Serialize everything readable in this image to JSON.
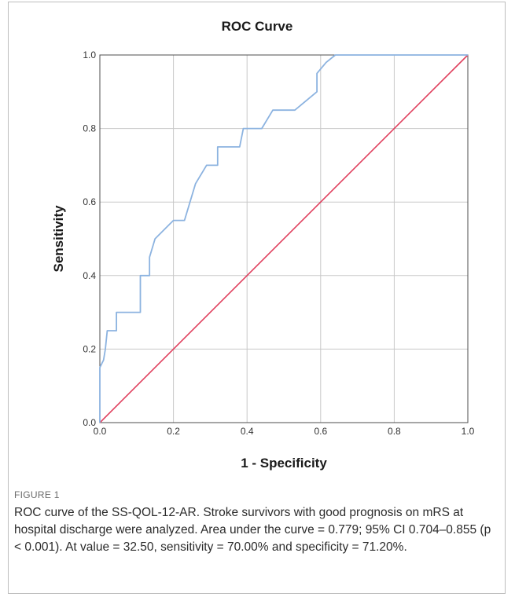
{
  "chart_data": {
    "type": "line",
    "title": "ROC Curve",
    "xlabel": "1 - Specificity",
    "ylabel": "Sensitivity",
    "xlim": [
      0.0,
      1.0
    ],
    "ylim": [
      0.0,
      1.0
    ],
    "xticks": [
      "0.0",
      "0.2",
      "0.4",
      "0.6",
      "0.8",
      "1.0"
    ],
    "yticks": [
      "0.0",
      "0.2",
      "0.4",
      "0.6",
      "0.8",
      "1.0"
    ],
    "grid": true,
    "legend": "none",
    "series": [
      {
        "color": "#8cb3e0",
        "points": [
          [
            0.0,
            0.0
          ],
          [
            0.0,
            0.15
          ],
          [
            0.01,
            0.17
          ],
          [
            0.015,
            0.2
          ],
          [
            0.02,
            0.25
          ],
          [
            0.045,
            0.25
          ],
          [
            0.045,
            0.3
          ],
          [
            0.11,
            0.3
          ],
          [
            0.11,
            0.4
          ],
          [
            0.135,
            0.4
          ],
          [
            0.135,
            0.45
          ],
          [
            0.15,
            0.5
          ],
          [
            0.19,
            0.54
          ],
          [
            0.2,
            0.55
          ],
          [
            0.23,
            0.55
          ],
          [
            0.26,
            0.65
          ],
          [
            0.29,
            0.7
          ],
          [
            0.32,
            0.7
          ],
          [
            0.32,
            0.75
          ],
          [
            0.38,
            0.75
          ],
          [
            0.39,
            0.8
          ],
          [
            0.44,
            0.8
          ],
          [
            0.47,
            0.85
          ],
          [
            0.53,
            0.85
          ],
          [
            0.59,
            0.9
          ],
          [
            0.59,
            0.95
          ],
          [
            0.615,
            0.98
          ],
          [
            0.64,
            1.0
          ],
          [
            1.0,
            1.0
          ]
        ]
      },
      {
        "color": "#e0405e",
        "points": [
          [
            0.0,
            0.0
          ],
          [
            1.0,
            1.0
          ]
        ]
      }
    ]
  },
  "caption": {
    "label": "FIGURE 1",
    "text": "ROC curve of the SS-QOL-12-AR. Stroke survivors with good prognosis on mRS at hospital discharge were analyzed. Area under the curve = 0.779; 95% CI 0.704–0.855 (p < 0.001). At value = 32.50, sensitivity = 70.00% and specificity = 71.20%."
  }
}
